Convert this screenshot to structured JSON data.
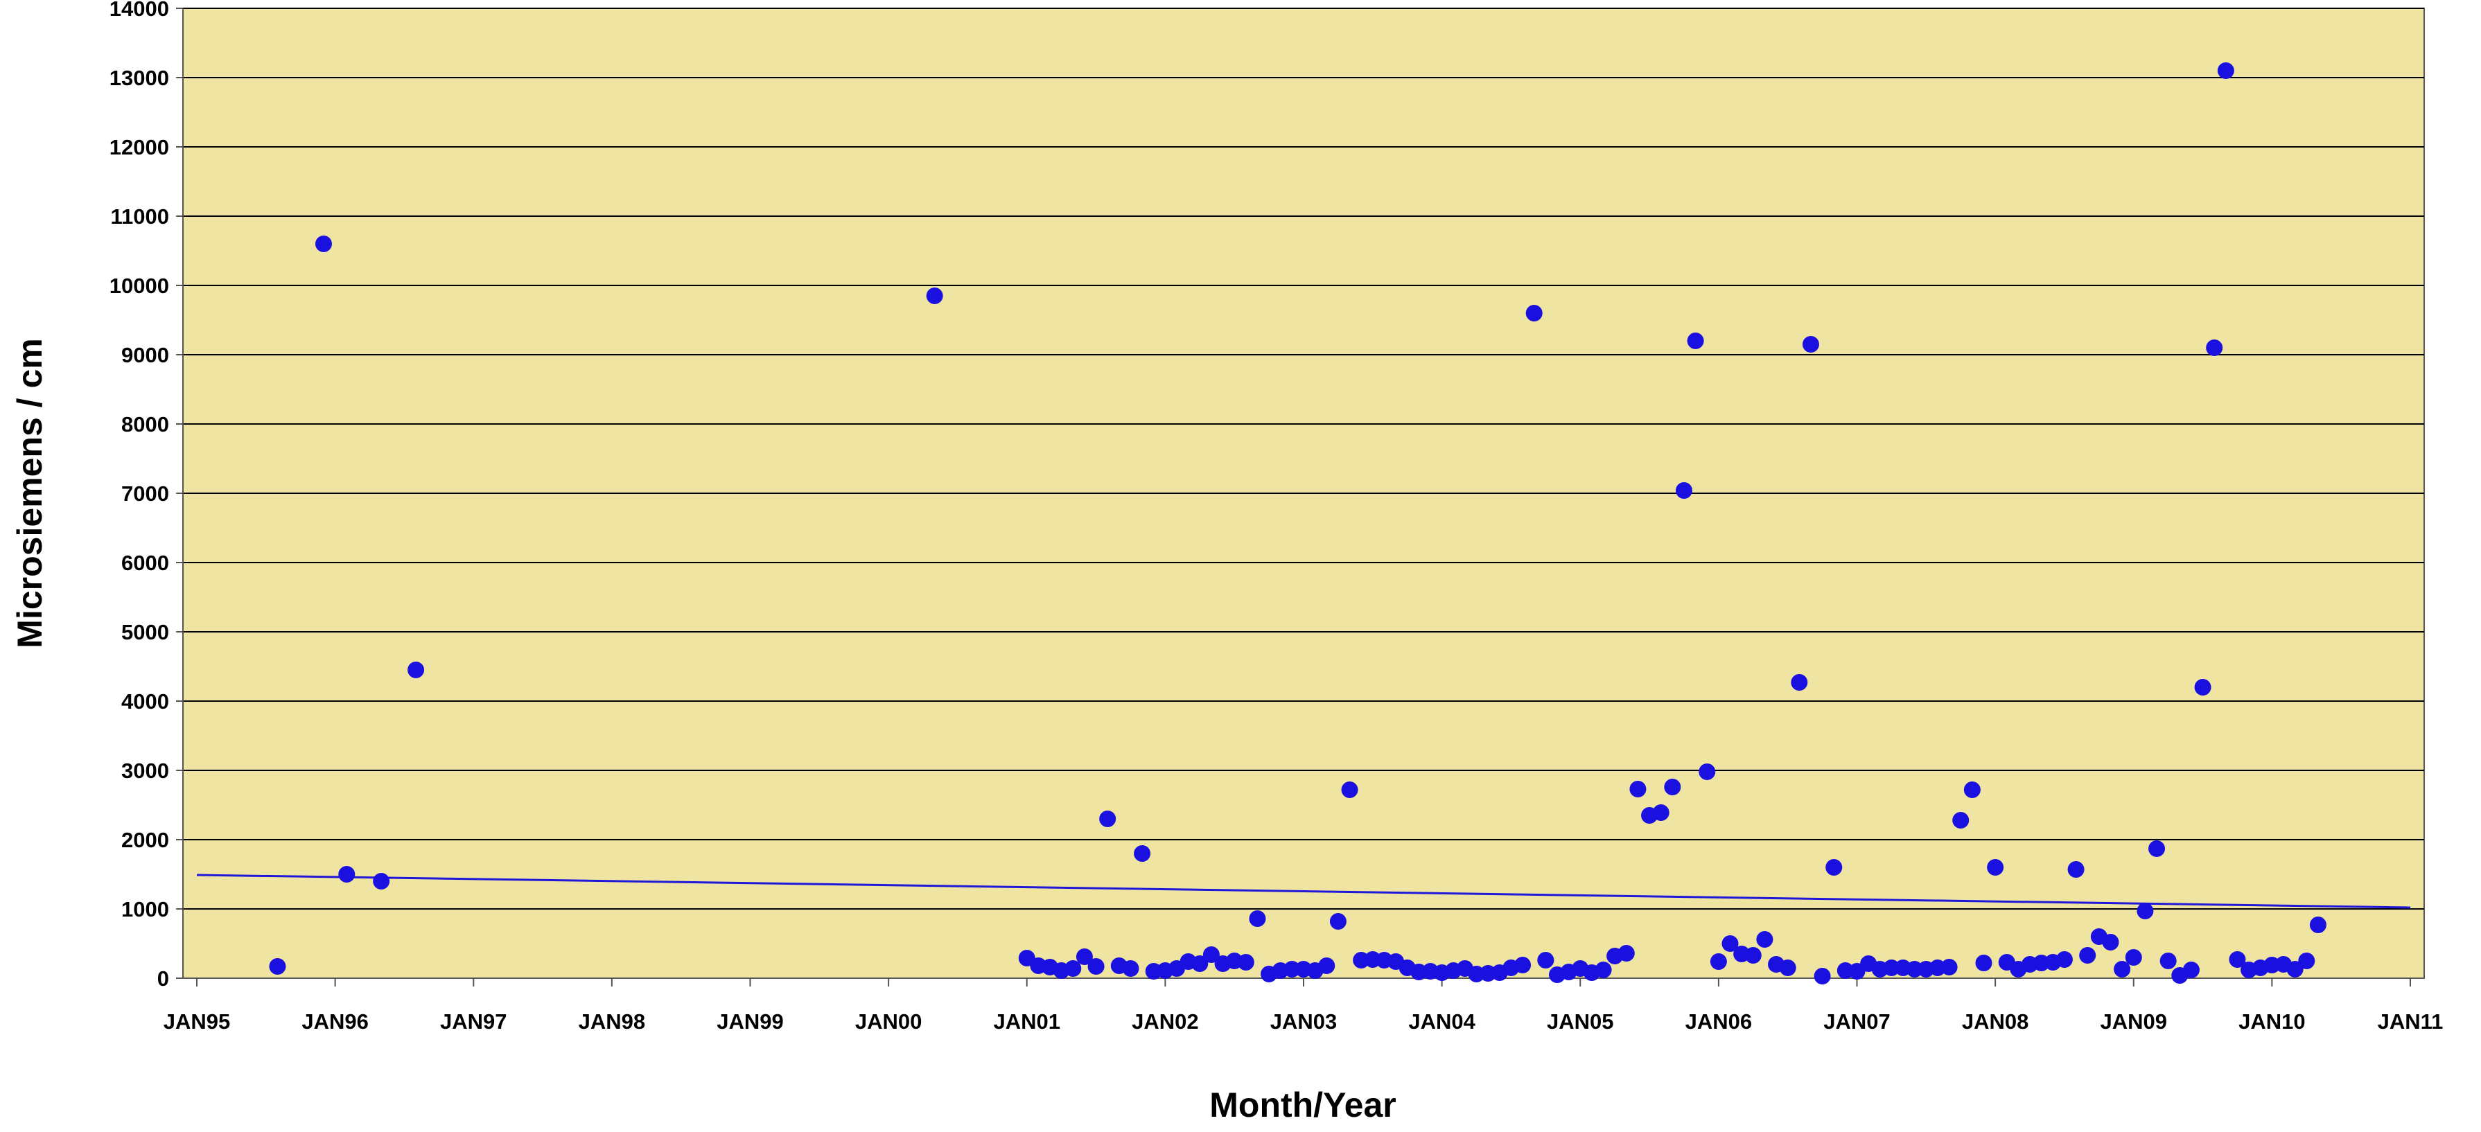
{
  "chart_data": {
    "type": "scatter",
    "xlabel": "Month/Year",
    "ylabel": "Microsiemens / cm",
    "x_ticks": [
      "JAN95",
      "JAN96",
      "JAN97",
      "JAN98",
      "JAN99",
      "JAN00",
      "JAN01",
      "JAN02",
      "JAN03",
      "JAN04",
      "JAN05",
      "JAN06",
      "JAN07",
      "JAN08",
      "JAN09",
      "JAN10",
      "JAN11"
    ],
    "y_ticks": [
      "0",
      "1000",
      "2000",
      "3000",
      "4000",
      "5000",
      "6000",
      "7000",
      "8000",
      "9000",
      "10000",
      "11000",
      "12000",
      "13000",
      "14000"
    ],
    "xlim": [
      "1995-01",
      "2011-01"
    ],
    "ylim": [
      0,
      14000
    ],
    "grid": "horizontal",
    "legend": "none",
    "colors": {
      "plot_background": "#f0e4a2",
      "points": "#1a10e0",
      "trendline": "#2018d8",
      "gridlines": "#000000"
    },
    "trendline": {
      "x": [
        "1995-01",
        "2011-01"
      ],
      "y": [
        1490,
        1020
      ]
    },
    "series": [
      {
        "x": [
          "1995-08",
          "1995-12",
          "1996-02",
          "1996-05",
          "1996-08",
          "2000-05",
          "2001-01",
          "2001-02",
          "2001-03",
          "2001-04",
          "2001-05",
          "2001-06",
          "2001-07",
          "2001-08",
          "2001-09",
          "2001-10",
          "2001-11",
          "2001-12",
          "2002-01",
          "2002-02",
          "2002-03",
          "2002-04",
          "2002-05",
          "2002-06",
          "2002-07",
          "2002-08",
          "2002-09",
          "2002-10",
          "2002-11",
          "2002-12",
          "2003-01",
          "2003-02",
          "2003-03",
          "2003-04",
          "2003-05",
          "2003-06",
          "2003-07",
          "2003-08",
          "2003-09",
          "2003-10",
          "2003-11",
          "2003-12",
          "2004-01",
          "2004-02",
          "2004-03",
          "2004-04",
          "2004-05",
          "2004-06",
          "2004-07",
          "2004-08",
          "2004-09",
          "2004-10",
          "2004-11",
          "2004-12",
          "2005-01",
          "2005-02",
          "2005-03",
          "2005-04",
          "2005-05",
          "2005-06",
          "2005-07",
          "2005-08",
          "2005-09",
          "2005-10",
          "2005-11",
          "2005-12",
          "2006-01",
          "2006-02",
          "2006-03",
          "2006-04",
          "2006-05",
          "2006-06",
          "2006-07",
          "2006-08",
          "2006-09",
          "2006-10",
          "2006-11",
          "2006-12",
          "2007-01",
          "2007-02",
          "2007-03",
          "2007-04",
          "2007-05",
          "2007-06",
          "2007-07",
          "2007-08",
          "2007-09",
          "2007-10",
          "2007-11",
          "2007-12",
          "2008-01",
          "2008-02",
          "2008-03",
          "2008-04",
          "2008-05",
          "2008-06",
          "2008-07",
          "2008-08",
          "2008-09",
          "2008-10",
          "2008-11",
          "2008-12",
          "2009-01",
          "2009-02",
          "2009-03",
          "2009-04",
          "2009-05",
          "2009-06",
          "2009-07",
          "2009-08",
          "2009-09",
          "2009-10",
          "2009-11",
          "2009-12",
          "2010-01",
          "2010-02",
          "2010-03",
          "2010-04",
          "2010-05"
        ],
        "y": [
          170,
          10600,
          1500,
          1400,
          4450,
          9850,
          290,
          180,
          160,
          110,
          140,
          310,
          170,
          2300,
          180,
          140,
          1800,
          100,
          110,
          140,
          240,
          210,
          340,
          210,
          250,
          230,
          860,
          60,
          110,
          130,
          130,
          110,
          180,
          820,
          2720,
          260,
          270,
          260,
          240,
          150,
          90,
          100,
          80,
          110,
          140,
          60,
          70,
          80,
          150,
          190,
          9600,
          260,
          50,
          90,
          140,
          80,
          120,
          320,
          360,
          2730,
          2350,
          2390,
          2760,
          7040,
          9200,
          2980,
          240,
          500,
          350,
          330,
          560,
          200,
          150,
          4270,
          9150,
          30,
          1600,
          110,
          100,
          210,
          130,
          150,
          150,
          130,
          130,
          150,
          160,
          2280,
          2720,
          220,
          1600,
          230,
          130,
          200,
          220,
          230,
          270,
          1570,
          330,
          600,
          520,
          130,
          300,
          970,
          1870,
          250,
          40,
          120,
          4200,
          9100,
          13100,
          270,
          120,
          150,
          190,
          200,
          130,
          250,
          770
        ]
      }
    ]
  }
}
